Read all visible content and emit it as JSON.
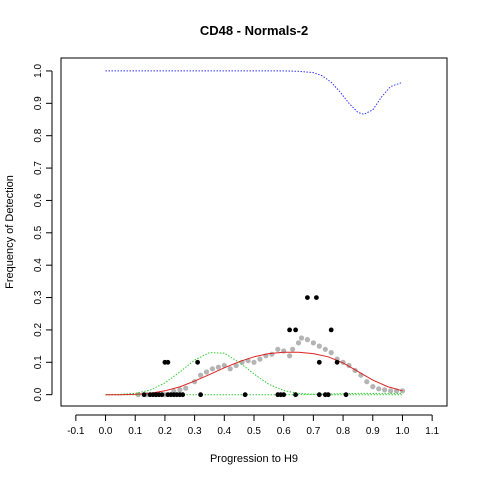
{
  "chart_data": {
    "type": "scatter",
    "title": "CD48 - Normals-2",
    "xlabel": "Progression to H9",
    "ylabel": "Frequency of Detection",
    "xlim": [
      -0.15,
      1.15
    ],
    "ylim": [
      -0.035,
      1.04
    ],
    "xticks": [
      "-0.1",
      "0.0",
      "0.1",
      "0.2",
      "0.3",
      "0.4",
      "0.5",
      "0.6",
      "0.7",
      "0.8",
      "0.9",
      "1.0",
      "1.1"
    ],
    "yticks": [
      "0.0",
      "0.1",
      "0.2",
      "0.3",
      "0.4",
      "0.5",
      "0.6",
      "0.7",
      "0.8",
      "0.9",
      "1.0"
    ],
    "grid": false,
    "series": [
      {
        "role": "observed",
        "color": "#000000",
        "marker": "filled-circle",
        "points": [
          [
            0.13,
            0
          ],
          [
            0.15,
            0
          ],
          [
            0.16,
            0
          ],
          [
            0.17,
            0
          ],
          [
            0.18,
            0
          ],
          [
            0.19,
            0
          ],
          [
            0.2,
            0.1
          ],
          [
            0.21,
            0.1
          ],
          [
            0.21,
            0
          ],
          [
            0.22,
            0
          ],
          [
            0.23,
            0
          ],
          [
            0.24,
            0
          ],
          [
            0.25,
            0
          ],
          [
            0.26,
            0
          ],
          [
            0.31,
            0.1
          ],
          [
            0.32,
            0
          ],
          [
            0.47,
            0
          ],
          [
            0.58,
            0
          ],
          [
            0.59,
            0
          ],
          [
            0.6,
            0
          ],
          [
            0.62,
            0.2
          ],
          [
            0.64,
            0.2
          ],
          [
            0.64,
            0
          ],
          [
            0.68,
            0.3
          ],
          [
            0.71,
            0.3
          ],
          [
            0.72,
            0.1
          ],
          [
            0.72,
            0
          ],
          [
            0.74,
            0
          ],
          [
            0.75,
            0
          ],
          [
            0.76,
            0.2
          ],
          [
            0.78,
            0.1
          ],
          [
            0.81,
            0
          ]
        ]
      },
      {
        "role": "smoothed",
        "color": "#b4b4b4",
        "marker": "filled-circle",
        "points": [
          [
            0.11,
            0
          ],
          [
            0.14,
            0
          ],
          [
            0.17,
            0
          ],
          [
            0.2,
            0
          ],
          [
            0.23,
            0.01
          ],
          [
            0.25,
            0.015
          ],
          [
            0.27,
            0.02
          ],
          [
            0.3,
            0.04
          ],
          [
            0.32,
            0.06
          ],
          [
            0.34,
            0.07
          ],
          [
            0.36,
            0.08
          ],
          [
            0.38,
            0.085
          ],
          [
            0.4,
            0.09
          ],
          [
            0.42,
            0.08
          ],
          [
            0.44,
            0.09
          ],
          [
            0.46,
            0.1
          ],
          [
            0.48,
            0.105
          ],
          [
            0.5,
            0.1
          ],
          [
            0.52,
            0.11
          ],
          [
            0.54,
            0.12
          ],
          [
            0.56,
            0.125
          ],
          [
            0.58,
            0.14
          ],
          [
            0.6,
            0.135
          ],
          [
            0.62,
            0.12
          ],
          [
            0.63,
            0.14
          ],
          [
            0.65,
            0.16
          ],
          [
            0.66,
            0.175
          ],
          [
            0.68,
            0.17
          ],
          [
            0.7,
            0.16
          ],
          [
            0.72,
            0.15
          ],
          [
            0.74,
            0.14
          ],
          [
            0.76,
            0.13
          ],
          [
            0.78,
            0.11
          ],
          [
            0.8,
            0.1
          ],
          [
            0.82,
            0.09
          ],
          [
            0.84,
            0.075
          ],
          [
            0.86,
            0.06
          ],
          [
            0.88,
            0.04
          ],
          [
            0.9,
            0.025
          ],
          [
            0.92,
            0.018
          ],
          [
            0.94,
            0.015
          ],
          [
            0.96,
            0.012
          ],
          [
            0.98,
            0.012
          ],
          [
            1.0,
            0.012
          ]
        ]
      },
      {
        "role": "fit",
        "color": "#dd2222",
        "line": "solid",
        "x": [
          0.0,
          0.05,
          0.1,
          0.15,
          0.2,
          0.25,
          0.3,
          0.35,
          0.4,
          0.45,
          0.5,
          0.55,
          0.6,
          0.65,
          0.7,
          0.75,
          0.8,
          0.85,
          0.9,
          0.95,
          1.0
        ],
        "y": [
          0.0,
          0.0,
          0.001,
          0.004,
          0.012,
          0.024,
          0.042,
          0.062,
          0.083,
          0.102,
          0.117,
          0.127,
          0.131,
          0.131,
          0.127,
          0.117,
          0.098,
          0.072,
          0.045,
          0.025,
          0.012
        ]
      },
      {
        "role": "component-1",
        "color": "#33cc33",
        "line": "dotted",
        "x": [
          0.0,
          0.05,
          0.1,
          0.15,
          0.2,
          0.25,
          0.3,
          0.35,
          0.4,
          0.45,
          0.5,
          0.55,
          0.6,
          0.65,
          0.7,
          0.75,
          0.8,
          0.85,
          0.9,
          0.95,
          1.0
        ],
        "y": [
          0.0,
          0.001,
          0.004,
          0.014,
          0.036,
          0.07,
          0.107,
          0.13,
          0.128,
          0.1,
          0.064,
          0.032,
          0.013,
          0.004,
          0.001,
          0.0,
          0.0,
          0.0,
          0.0,
          0.0,
          0.0
        ]
      },
      {
        "role": "component-2",
        "color": "#33cc33",
        "line": "dotted",
        "x": [
          0.0,
          0.05,
          0.1,
          0.15,
          0.2,
          0.25,
          0.3,
          0.35,
          0.4,
          0.45,
          0.5,
          0.55,
          0.6,
          0.65,
          0.7,
          0.75,
          0.8,
          0.85,
          0.9,
          0.95,
          1.0
        ],
        "y": [
          0.0,
          0.0,
          0.0,
          0.0,
          0.0,
          0.0,
          0.0,
          0.0,
          0.0,
          0.0,
          0.0,
          0.0,
          0.0,
          0.0,
          0.001,
          0.002,
          0.003,
          0.004,
          0.004,
          0.004,
          0.004
        ]
      },
      {
        "role": "detection-probability",
        "color": "#3333ff",
        "line": "dotted",
        "x": [
          0.0,
          0.1,
          0.2,
          0.3,
          0.4,
          0.5,
          0.6,
          0.65,
          0.7,
          0.73,
          0.76,
          0.79,
          0.82,
          0.85,
          0.87,
          0.9,
          0.93,
          0.96,
          1.0
        ],
        "y": [
          1.0,
          1.0,
          1.0,
          1.0,
          1.0,
          1.0,
          1.0,
          0.999,
          0.995,
          0.985,
          0.965,
          0.935,
          0.9,
          0.872,
          0.866,
          0.88,
          0.92,
          0.952,
          0.965
        ]
      }
    ]
  }
}
